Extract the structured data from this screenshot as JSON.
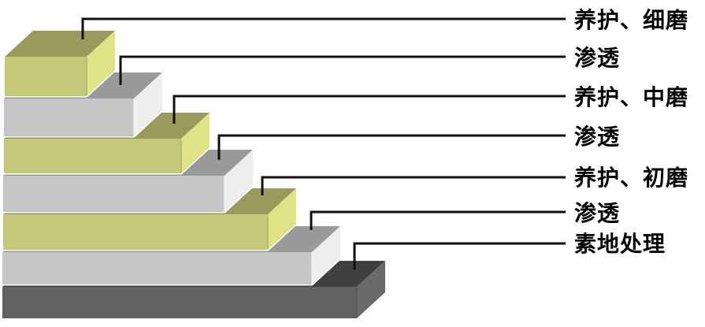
{
  "diagram": {
    "type": "layered-step-stack",
    "layers": [
      {
        "label": "养护、细磨",
        "material": "yellow"
      },
      {
        "label": "渗透",
        "material": "gray"
      },
      {
        "label": "养护、中磨",
        "material": "yellow"
      },
      {
        "label": "渗透",
        "material": "gray"
      },
      {
        "label": "养护、初磨",
        "material": "yellow"
      },
      {
        "label": "渗透",
        "material": "gray"
      },
      {
        "label": "素地处理",
        "material": "dark"
      }
    ],
    "colors": {
      "yellow_top": "#999a5b",
      "yellow_front": "#c5c877",
      "yellow_side": "#dfe287",
      "yellow_edge": "#aeb162",
      "gray_top": "#9a9a9a",
      "gray_front": "#c6c6c6",
      "gray_side": "#eeeeee",
      "gray_edge": "#f2f2f2",
      "dark_top": "#404040",
      "dark_front": "#616161",
      "dark_side": "#6a6a6a",
      "dark_edge": "#565656",
      "line": "#101010",
      "text": "#000000",
      "background": "#ffffff"
    }
  }
}
